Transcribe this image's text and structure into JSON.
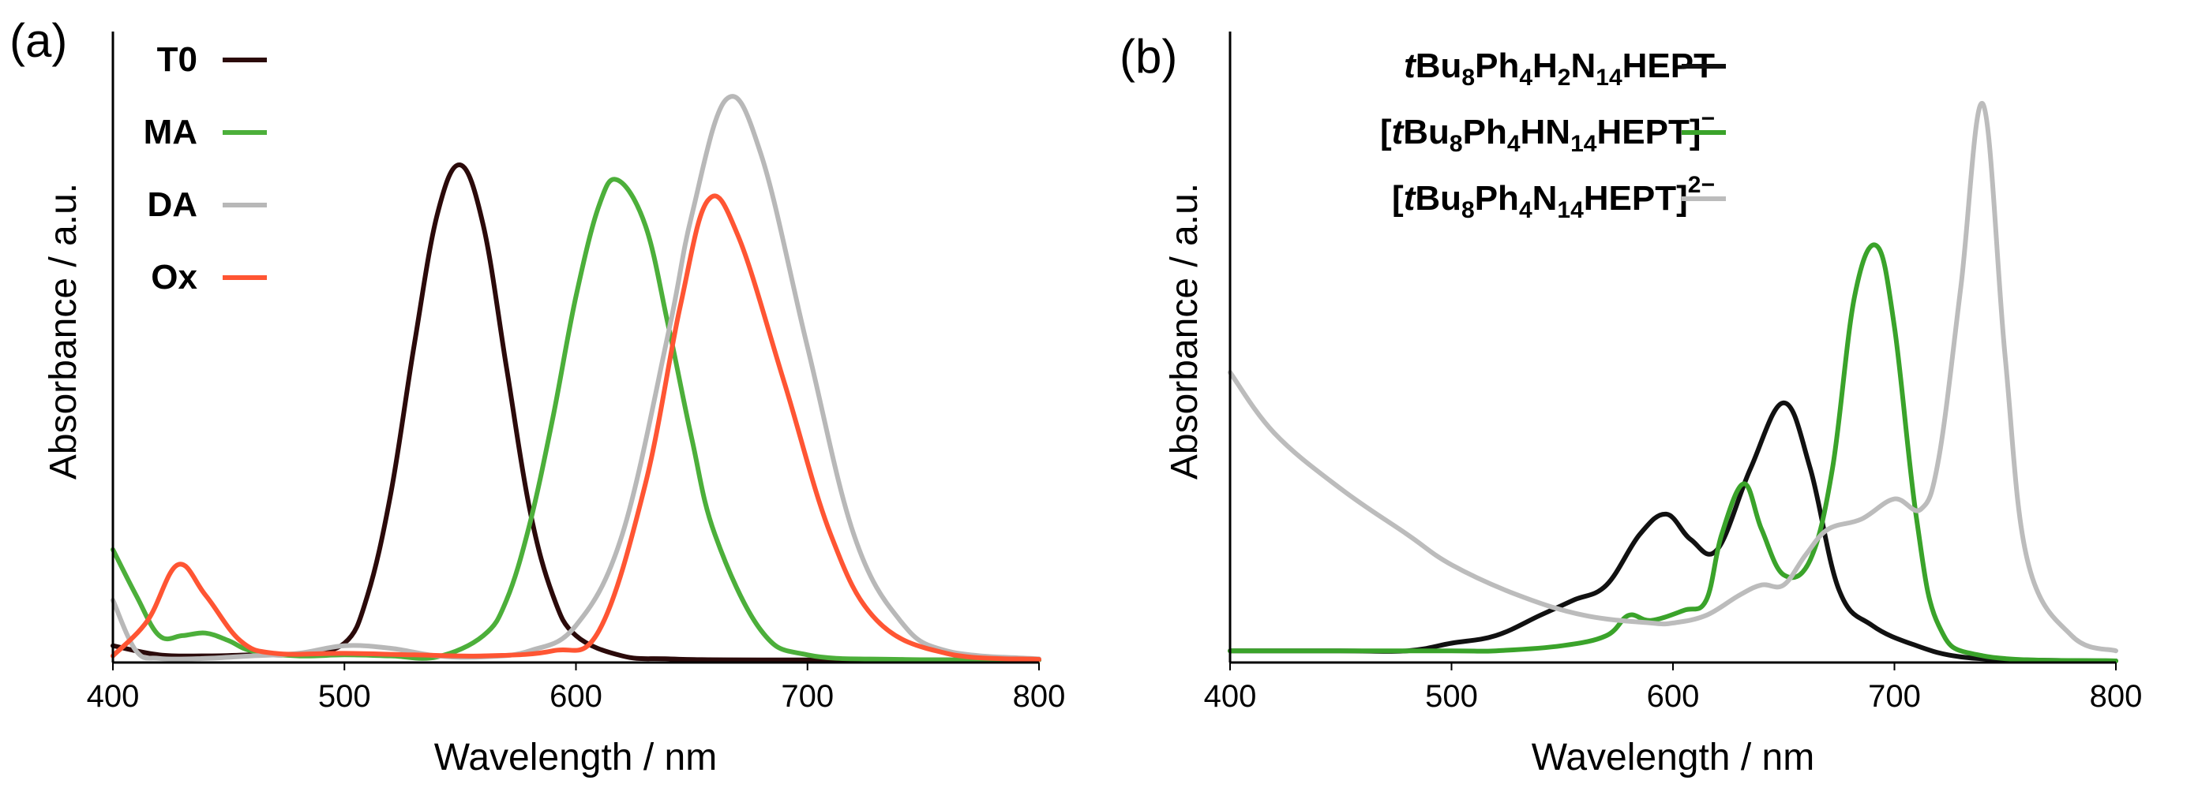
{
  "chart_data": [
    {
      "type": "line",
      "panel_label": "(a)",
      "xlabel": "Wavelength / nm",
      "ylabel": "Absorbance / a.u.",
      "xlim": [
        400,
        800
      ],
      "ylim": [
        0,
        1.0
      ],
      "xticks": [
        "400",
        "500",
        "600",
        "700",
        "800"
      ],
      "legend_position": "top-left",
      "series": [
        {
          "name": "T0",
          "color": "#2b0a0a",
          "x": [
            400,
            420,
            440,
            460,
            480,
            500,
            510,
            520,
            530,
            540,
            550,
            560,
            570,
            580,
            590,
            600,
            620,
            640,
            680,
            800
          ],
          "y": [
            0.03,
            0.012,
            0.01,
            0.012,
            0.014,
            0.035,
            0.13,
            0.33,
            0.62,
            0.88,
            0.98,
            0.86,
            0.58,
            0.3,
            0.13,
            0.05,
            0.01,
            0.004,
            0.002,
            0.002
          ]
        },
        {
          "name": "MA",
          "color": "#4caf3a",
          "x": [
            400,
            410,
            420,
            430,
            440,
            450,
            460,
            480,
            500,
            520,
            540,
            560,
            570,
            580,
            590,
            600,
            610,
            618,
            630,
            640,
            650,
            660,
            680,
            700,
            740,
            800
          ],
          "y": [
            0.22,
            0.13,
            0.05,
            0.05,
            0.055,
            0.04,
            0.02,
            0.01,
            0.012,
            0.01,
            0.008,
            0.05,
            0.12,
            0.27,
            0.48,
            0.72,
            0.9,
            0.95,
            0.86,
            0.66,
            0.44,
            0.25,
            0.06,
            0.012,
            0.003,
            0.002
          ]
        },
        {
          "name": "DA",
          "color": "#b8b8b8",
          "x": [
            400,
            410,
            420,
            440,
            460,
            480,
            500,
            520,
            540,
            560,
            580,
            600,
            620,
            640,
            650,
            665,
            680,
            700,
            720,
            740,
            760,
            800
          ],
          "y": [
            0.12,
            0.02,
            0.005,
            0.005,
            0.01,
            0.015,
            0.03,
            0.025,
            0.01,
            0.008,
            0.02,
            0.07,
            0.25,
            0.65,
            0.88,
            1.11,
            1.0,
            0.62,
            0.25,
            0.08,
            0.02,
            0.004
          ]
        },
        {
          "name": "Ox",
          "color": "#ff5533",
          "x": [
            400,
            415,
            428,
            440,
            455,
            470,
            500,
            530,
            560,
            590,
            610,
            630,
            645,
            657,
            670,
            690,
            710,
            730,
            760,
            800
          ],
          "y": [
            0.01,
            0.08,
            0.19,
            0.13,
            0.04,
            0.015,
            0.015,
            0.012,
            0.01,
            0.02,
            0.06,
            0.35,
            0.7,
            0.91,
            0.84,
            0.55,
            0.25,
            0.08,
            0.015,
            0.003
          ]
        }
      ]
    },
    {
      "type": "line",
      "panel_label": "(b)",
      "xlabel": "Wavelength / nm",
      "ylabel": "Absorbance / a.u.",
      "xlim": [
        400,
        800
      ],
      "ylim": [
        0,
        1.0
      ],
      "xticks": [
        "400",
        "500",
        "600",
        "700",
        "800"
      ],
      "legend_position": "top-center",
      "series": [
        {
          "name": "tBu8Ph4H2N14HEPT",
          "color": "#111111",
          "legend": [
            {
              "t": "t",
              "s": "italic"
            },
            {
              "t": "Bu",
              "s": ""
            },
            {
              "t": "8",
              "s": "sub"
            },
            {
              "t": "Ph",
              "s": ""
            },
            {
              "t": "4",
              "s": "sub"
            },
            {
              "t": "H",
              "s": ""
            },
            {
              "t": "2",
              "s": "sub"
            },
            {
              "t": "N",
              "s": ""
            },
            {
              "t": "14",
              "s": "sub"
            },
            {
              "t": "HEPT",
              "s": ""
            }
          ],
          "x": [
            400,
            450,
            480,
            500,
            520,
            540,
            555,
            570,
            585,
            597,
            608,
            620,
            635,
            650,
            662,
            675,
            690,
            710,
            730,
            760,
            800
          ],
          "y": [
            0.02,
            0.02,
            0.02,
            0.035,
            0.05,
            0.09,
            0.12,
            0.15,
            0.25,
            0.29,
            0.24,
            0.22,
            0.38,
            0.51,
            0.38,
            0.14,
            0.07,
            0.03,
            0.008,
            0.002,
            0.0
          ]
        },
        {
          "name": "[tBu8Ph4HN14HEPT]−",
          "color": "#3aa32a",
          "legend": [
            {
              "t": "[",
              "s": ""
            },
            {
              "t": "t",
              "s": "italic"
            },
            {
              "t": "Bu",
              "s": ""
            },
            {
              "t": "8",
              "s": "sub"
            },
            {
              "t": "Ph",
              "s": ""
            },
            {
              "t": "4",
              "s": "sub"
            },
            {
              "t": "HN",
              "s": ""
            },
            {
              "t": "14",
              "s": "sub"
            },
            {
              "t": "HEPT]",
              "s": ""
            },
            {
              "t": "−",
              "s": "sup"
            }
          ],
          "x": [
            400,
            450,
            500,
            520,
            550,
            570,
            580,
            590,
            605,
            615,
            622,
            632,
            640,
            650,
            662,
            672,
            682,
            692,
            700,
            710,
            720,
            740,
            800
          ],
          "y": [
            0.02,
            0.02,
            0.02,
            0.02,
            0.03,
            0.05,
            0.09,
            0.08,
            0.1,
            0.12,
            0.25,
            0.35,
            0.26,
            0.17,
            0.2,
            0.38,
            0.72,
            0.82,
            0.66,
            0.28,
            0.07,
            0.01,
            0.0
          ]
        },
        {
          "name": "[tBu8Ph4N14HEPT]2−",
          "color": "#bcbcbc",
          "legend": [
            {
              "t": "[",
              "s": ""
            },
            {
              "t": "t",
              "s": "italic"
            },
            {
              "t": "Bu",
              "s": ""
            },
            {
              "t": "8",
              "s": "sub"
            },
            {
              "t": "Ph",
              "s": ""
            },
            {
              "t": "4",
              "s": "sub"
            },
            {
              "t": "N",
              "s": ""
            },
            {
              "t": "14",
              "s": "sub"
            },
            {
              "t": "HEPT]",
              "s": ""
            },
            {
              "t": "2−",
              "s": "sup"
            }
          ],
          "x": [
            400,
            420,
            450,
            480,
            500,
            530,
            560,
            590,
            600,
            615,
            630,
            640,
            650,
            660,
            670,
            685,
            700,
            712,
            720,
            730,
            740,
            750,
            760,
            780,
            800
          ],
          "y": [
            0.57,
            0.45,
            0.34,
            0.25,
            0.19,
            0.13,
            0.09,
            0.075,
            0.075,
            0.09,
            0.13,
            0.15,
            0.15,
            0.21,
            0.26,
            0.28,
            0.32,
            0.3,
            0.4,
            0.74,
            1.1,
            0.6,
            0.2,
            0.05,
            0.02
          ]
        }
      ]
    }
  ]
}
